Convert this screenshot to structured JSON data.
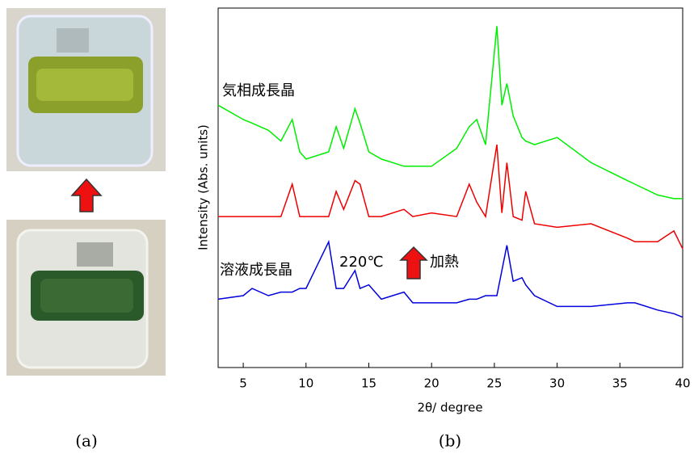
{
  "panel_labels": [
    "(a)",
    "(b)"
  ],
  "chart_data": {
    "type": "line",
    "x_label": "2θ/ degree",
    "y_label": "Intensity (Abs. units)",
    "annotations": [
      "気相成長晶",
      "溶液成長晶",
      "220℃",
      "加熱"
    ],
    "x": [
      3,
      5,
      5.7,
      7,
      8,
      8.9,
      9.5,
      10,
      11.8,
      12.4,
      13,
      13.9,
      14.3,
      15,
      16,
      17.8,
      18.5,
      20,
      22,
      23,
      23.6,
      24.3,
      25.2,
      25.6,
      26,
      26.5,
      27.2,
      27.5,
      28.2,
      30,
      32.7,
      35.6,
      36.2,
      38,
      39.3,
      40
    ],
    "series": [
      {
        "color": "#00ee00",
        "values": [
          73,
          69,
          68,
          66,
          63,
          69,
          60,
          58,
          60,
          67,
          61,
          72,
          68,
          60,
          58,
          56,
          56,
          56,
          61,
          67,
          69,
          62,
          95,
          73,
          79,
          70,
          64,
          63,
          62,
          64,
          57,
          52,
          51,
          48,
          47,
          47
        ]
      },
      {
        "color": "#ee0000",
        "values": [
          42,
          42,
          42,
          42,
          42,
          51,
          42,
          42,
          42,
          49,
          44,
          52,
          51,
          42,
          42,
          44,
          42,
          43,
          42,
          51,
          46,
          42,
          62,
          43,
          57,
          42,
          41,
          49,
          40,
          39,
          40,
          36,
          35,
          35,
          38,
          33
        ]
      },
      {
        "color": "#0000dd",
        "values": [
          19,
          20,
          22,
          20,
          21,
          21,
          22,
          22,
          35,
          22,
          22,
          27,
          22,
          23,
          19,
          21,
          18,
          18,
          18,
          19,
          19,
          20,
          20,
          27,
          34,
          24,
          25,
          23,
          20,
          17,
          17,
          18,
          18,
          16,
          15,
          14
        ]
      }
    ],
    "xlim": [
      3,
      40
    ],
    "xticks": [
      5,
      10,
      15,
      20,
      25,
      30,
      35,
      40
    ],
    "ylim": [
      0,
      100
    ]
  }
}
